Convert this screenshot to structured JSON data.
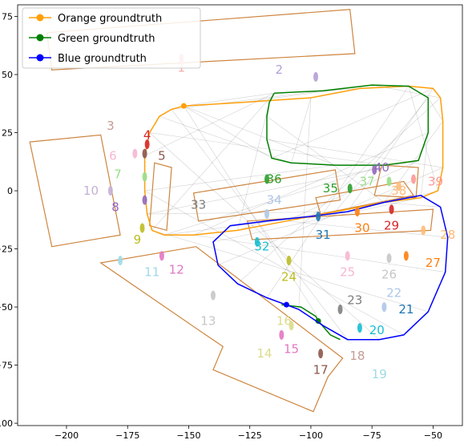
{
  "chart_data": {
    "type": "scatter",
    "xlim": [
      -220,
      -38
    ],
    "ylim": [
      -101,
      80
    ],
    "x_ticks": [
      -200,
      -175,
      -150,
      -125,
      -100,
      -75,
      -50
    ],
    "x_tick_labels": [
      "−200",
      "−175",
      "−150",
      "−125",
      "−100",
      "−75",
      "−50"
    ],
    "y_ticks": [
      75,
      50,
      25,
      0,
      -25,
      -50,
      -75,
      -100
    ],
    "y_tick_labels": [
      "75",
      "50",
      "25",
      "0",
      "−25",
      "−50",
      "−75",
      "−100"
    ],
    "grid": false,
    "legend_position": "top-left",
    "series": [
      {
        "name": "Orange groundtruth",
        "color": "#ff9f0a",
        "marker_point": [
          -152,
          36.5
        ],
        "points": [
          [
            -152,
            36.5
          ],
          [
            -128,
            38
          ],
          [
            -100,
            40
          ],
          [
            -80,
            44
          ],
          [
            -60,
            45
          ],
          [
            -50,
            44
          ],
          [
            -47,
            40
          ],
          [
            -46,
            30
          ],
          [
            -46,
            10
          ],
          [
            -48,
            0
          ],
          [
            -55,
            -3
          ],
          [
            -70,
            -5
          ],
          [
            -90,
            -9
          ],
          [
            -110,
            -13
          ],
          [
            -130,
            -17
          ],
          [
            -148,
            -19
          ],
          [
            -160,
            -19
          ],
          [
            -165,
            -17
          ],
          [
            -167,
            -10
          ],
          [
            -168,
            0
          ],
          [
            -168,
            15
          ],
          [
            -166,
            25
          ],
          [
            -162,
            32
          ],
          [
            -157,
            35
          ],
          [
            -152,
            36.5
          ]
        ]
      },
      {
        "name": "Green groundtruth",
        "color": "#008000",
        "marker_point": [
          -97,
          -56
        ],
        "points": [
          [
            -115,
            42
          ],
          [
            -95,
            43
          ],
          [
            -75,
            45.5
          ],
          [
            -60,
            45
          ],
          [
            -52,
            40
          ],
          [
            -52,
            25
          ],
          [
            -56,
            13
          ],
          [
            -70,
            11
          ],
          [
            -90,
            11
          ],
          [
            -108,
            12
          ],
          [
            -116,
            14
          ],
          [
            -118,
            22
          ],
          [
            -118,
            32
          ],
          [
            -117,
            38
          ],
          [
            -115,
            42
          ]
        ],
        "points2": [
          [
            -112,
            -49
          ],
          [
            -104,
            -50
          ],
          [
            -98,
            -54
          ],
          [
            -97,
            -56
          ],
          [
            -92,
            -62
          ],
          [
            -88,
            -64
          ]
        ]
      },
      {
        "name": "Blue groundtruth",
        "color": "#0000ff",
        "marker_point": [
          -110,
          -49
        ],
        "points": [
          [
            -85,
            -9
          ],
          [
            -70,
            -5
          ],
          [
            -55,
            -2
          ],
          [
            -47,
            -7
          ],
          [
            -44,
            -20
          ],
          [
            -45,
            -35
          ],
          [
            -52,
            -52
          ],
          [
            -62,
            -62
          ],
          [
            -72,
            -64
          ],
          [
            -85,
            -64
          ],
          [
            -95,
            -58
          ],
          [
            -105,
            -51
          ],
          [
            -118,
            -46
          ],
          [
            -130,
            -40
          ],
          [
            -138,
            -32
          ],
          [
            -140,
            -22
          ],
          [
            -133,
            -15
          ],
          [
            -118,
            -13
          ],
          [
            -100,
            -11
          ],
          [
            -85,
            -9
          ]
        ]
      }
    ],
    "map_boxes_color": "#cd853f",
    "map_boxes": [
      [
        [
          -208,
          68
        ],
        [
          -84,
          78
        ],
        [
          -82,
          59
        ],
        [
          -206,
          52
        ]
      ],
      [
        [
          -215,
          21
        ],
        [
          -186,
          24
        ],
        [
          -178,
          -19
        ],
        [
          -206,
          -24
        ]
      ],
      [
        [
          -164,
          12
        ],
        [
          -157,
          10
        ],
        [
          -159,
          -17
        ],
        [
          -166,
          -15
        ]
      ],
      [
        [
          -148,
          -1
        ],
        [
          -90,
          9
        ],
        [
          -88,
          -4
        ],
        [
          -146,
          -13
        ]
      ],
      [
        [
          -126,
          -13
        ],
        [
          -50,
          -8
        ],
        [
          -51,
          -17
        ],
        [
          -124,
          -21
        ]
      ],
      [
        [
          -98,
          -3
        ],
        [
          -62,
          4
        ],
        [
          -58,
          -2
        ],
        [
          -96,
          -10
        ]
      ],
      [
        [
          -74,
          -2
        ],
        [
          -57,
          -3
        ],
        [
          -56,
          10
        ],
        [
          -71,
          11
        ]
      ],
      [
        [
          -186,
          -31
        ],
        [
          -147,
          -24
        ],
        [
          -87,
          -72
        ],
        [
          -93,
          -80
        ],
        [
          -99,
          -95
        ],
        [
          -140,
          -77
        ],
        [
          -136,
          -67
        ],
        [
          -143,
          -62
        ],
        [
          -186,
          -31
        ]
      ]
    ],
    "track_labels": [
      {
        "text": "1",
        "x": -153,
        "y": 53,
        "color": "#f7a9a8"
      },
      {
        "text": "2",
        "x": -113,
        "y": 52,
        "color": "#b4a0d4"
      },
      {
        "text": "3",
        "x": -182,
        "y": 28,
        "color": "#c49c94"
      },
      {
        "text": "4",
        "x": -167,
        "y": 24,
        "color": "#d62728"
      },
      {
        "text": "5",
        "x": -161,
        "y": 15,
        "color": "#8c564b"
      },
      {
        "text": "6",
        "x": -181,
        "y": 15,
        "color": "#f7b6d2"
      },
      {
        "text": "7",
        "x": -179,
        "y": 7,
        "color": "#98df8a"
      },
      {
        "text": "8",
        "x": -180,
        "y": -7,
        "color": "#9467bd"
      },
      {
        "text": "9",
        "x": -171,
        "y": -21,
        "color": "#bcbd22"
      },
      {
        "text": "10",
        "x": -190,
        "y": 0,
        "color": "#c5b0d5"
      },
      {
        "text": "11",
        "x": -165,
        "y": -35,
        "color": "#9edae5"
      },
      {
        "text": "12",
        "x": -155,
        "y": -34,
        "color": "#e377c2"
      },
      {
        "text": "13",
        "x": -142,
        "y": -56,
        "color": "#c7c7c7"
      },
      {
        "text": "14",
        "x": -119,
        "y": -70,
        "color": "#dbdb8d"
      },
      {
        "text": "15",
        "x": -108,
        "y": -68,
        "color": "#e377c2"
      },
      {
        "text": "16",
        "x": -111,
        "y": -56,
        "color": "#dbdb8d"
      },
      {
        "text": "17",
        "x": -96,
        "y": -77,
        "color": "#8c564b"
      },
      {
        "text": "18",
        "x": -81,
        "y": -71,
        "color": "#c49c94"
      },
      {
        "text": "19",
        "x": -72,
        "y": -79,
        "color": "#9edae5"
      },
      {
        "text": "20",
        "x": -73,
        "y": -60,
        "color": "#17becf"
      },
      {
        "text": "21",
        "x": -61,
        "y": -51,
        "color": "#1f77b4"
      },
      {
        "text": "22",
        "x": -66,
        "y": -44,
        "color": "#aec7e8"
      },
      {
        "text": "23",
        "x": -82,
        "y": -47,
        "color": "#7f7f7f"
      },
      {
        "text": "24",
        "x": -109,
        "y": -37,
        "color": "#bcbd22"
      },
      {
        "text": "25",
        "x": -85,
        "y": -35,
        "color": "#f7b6d2"
      },
      {
        "text": "26",
        "x": -68,
        "y": -36,
        "color": "#c7c7c7"
      },
      {
        "text": "27",
        "x": -50,
        "y": -31,
        "color": "#ff7f0e"
      },
      {
        "text": "28",
        "x": -44,
        "y": -19,
        "color": "#ffbb78"
      },
      {
        "text": "29",
        "x": -67,
        "y": -15,
        "color": "#d62728"
      },
      {
        "text": "30",
        "x": -79,
        "y": -16,
        "color": "#ff7f0e"
      },
      {
        "text": "31",
        "x": -95,
        "y": -19,
        "color": "#1f77b4"
      },
      {
        "text": "32",
        "x": -120,
        "y": -24,
        "color": "#17becf"
      },
      {
        "text": "33",
        "x": -146,
        "y": -6,
        "color": "#7f7f7f"
      },
      {
        "text": "34",
        "x": -115,
        "y": -4,
        "color": "#aec7e8"
      },
      {
        "text": "35",
        "x": -92,
        "y": 1,
        "color": "#2ca02c"
      },
      {
        "text": "36",
        "x": -115,
        "y": 5,
        "color": "#2ca02c"
      },
      {
        "text": "37",
        "x": -77,
        "y": 4,
        "color": "#98df8a"
      },
      {
        "text": "38",
        "x": -64,
        "y": 0,
        "color": "#ffbb78"
      },
      {
        "text": "39",
        "x": -49,
        "y": 4,
        "color": "#ff9896"
      },
      {
        "text": "40",
        "x": -71,
        "y": 10,
        "color": "#9467bd"
      }
    ],
    "detections": [
      {
        "x": -153,
        "y": 57,
        "color": "#f7a9a8"
      },
      {
        "x": -98,
        "y": 49,
        "color": "#b4a0d4"
      },
      {
        "x": -167,
        "y": 20,
        "color": "#d62728"
      },
      {
        "x": -168,
        "y": 16,
        "color": "#8c564b"
      },
      {
        "x": -172,
        "y": 16,
        "color": "#f7b6d2"
      },
      {
        "x": -168,
        "y": 6,
        "color": "#98df8a"
      },
      {
        "x": -168,
        "y": -4,
        "color": "#9467bd"
      },
      {
        "x": -169,
        "y": -16,
        "color": "#bcbd22"
      },
      {
        "x": -182,
        "y": 0,
        "color": "#c5b0d5"
      },
      {
        "x": -178,
        "y": -30,
        "color": "#9edae5"
      },
      {
        "x": -161,
        "y": -28,
        "color": "#e377c2"
      },
      {
        "x": -140,
        "y": -45,
        "color": "#c7c7c7"
      },
      {
        "x": -108,
        "y": -58,
        "color": "#dbdb8d"
      },
      {
        "x": -112,
        "y": -62,
        "color": "#e377c2"
      },
      {
        "x": -96,
        "y": -70,
        "color": "#8c564b"
      },
      {
        "x": -80,
        "y": -59,
        "color": "#17becf"
      },
      {
        "x": -70,
        "y": -50,
        "color": "#aec7e8"
      },
      {
        "x": -88,
        "y": -51,
        "color": "#7f7f7f"
      },
      {
        "x": -109,
        "y": -30,
        "color": "#bcbd22"
      },
      {
        "x": -85,
        "y": -28,
        "color": "#f7b6d2"
      },
      {
        "x": -68,
        "y": -29,
        "color": "#c7c7c7"
      },
      {
        "x": -61,
        "y": -28,
        "color": "#ff7f0e"
      },
      {
        "x": -54,
        "y": -17,
        "color": "#ffbb78"
      },
      {
        "x": -67,
        "y": -8,
        "color": "#d62728"
      },
      {
        "x": -81,
        "y": -9,
        "color": "#ff7f0e"
      },
      {
        "x": -97,
        "y": -11,
        "color": "#1f77b4"
      },
      {
        "x": -122,
        "y": -22,
        "color": "#17becf"
      },
      {
        "x": -118,
        "y": -10,
        "color": "#aec7e8"
      },
      {
        "x": -84,
        "y": 1,
        "color": "#2ca02c"
      },
      {
        "x": -118,
        "y": 5,
        "color": "#2ca02c"
      },
      {
        "x": -68,
        "y": 4,
        "color": "#98df8a"
      },
      {
        "x": -64,
        "y": 2,
        "color": "#ffbb78"
      },
      {
        "x": -58,
        "y": 5,
        "color": "#ff9896"
      },
      {
        "x": -74,
        "y": 9,
        "color": "#9467bd"
      }
    ]
  }
}
